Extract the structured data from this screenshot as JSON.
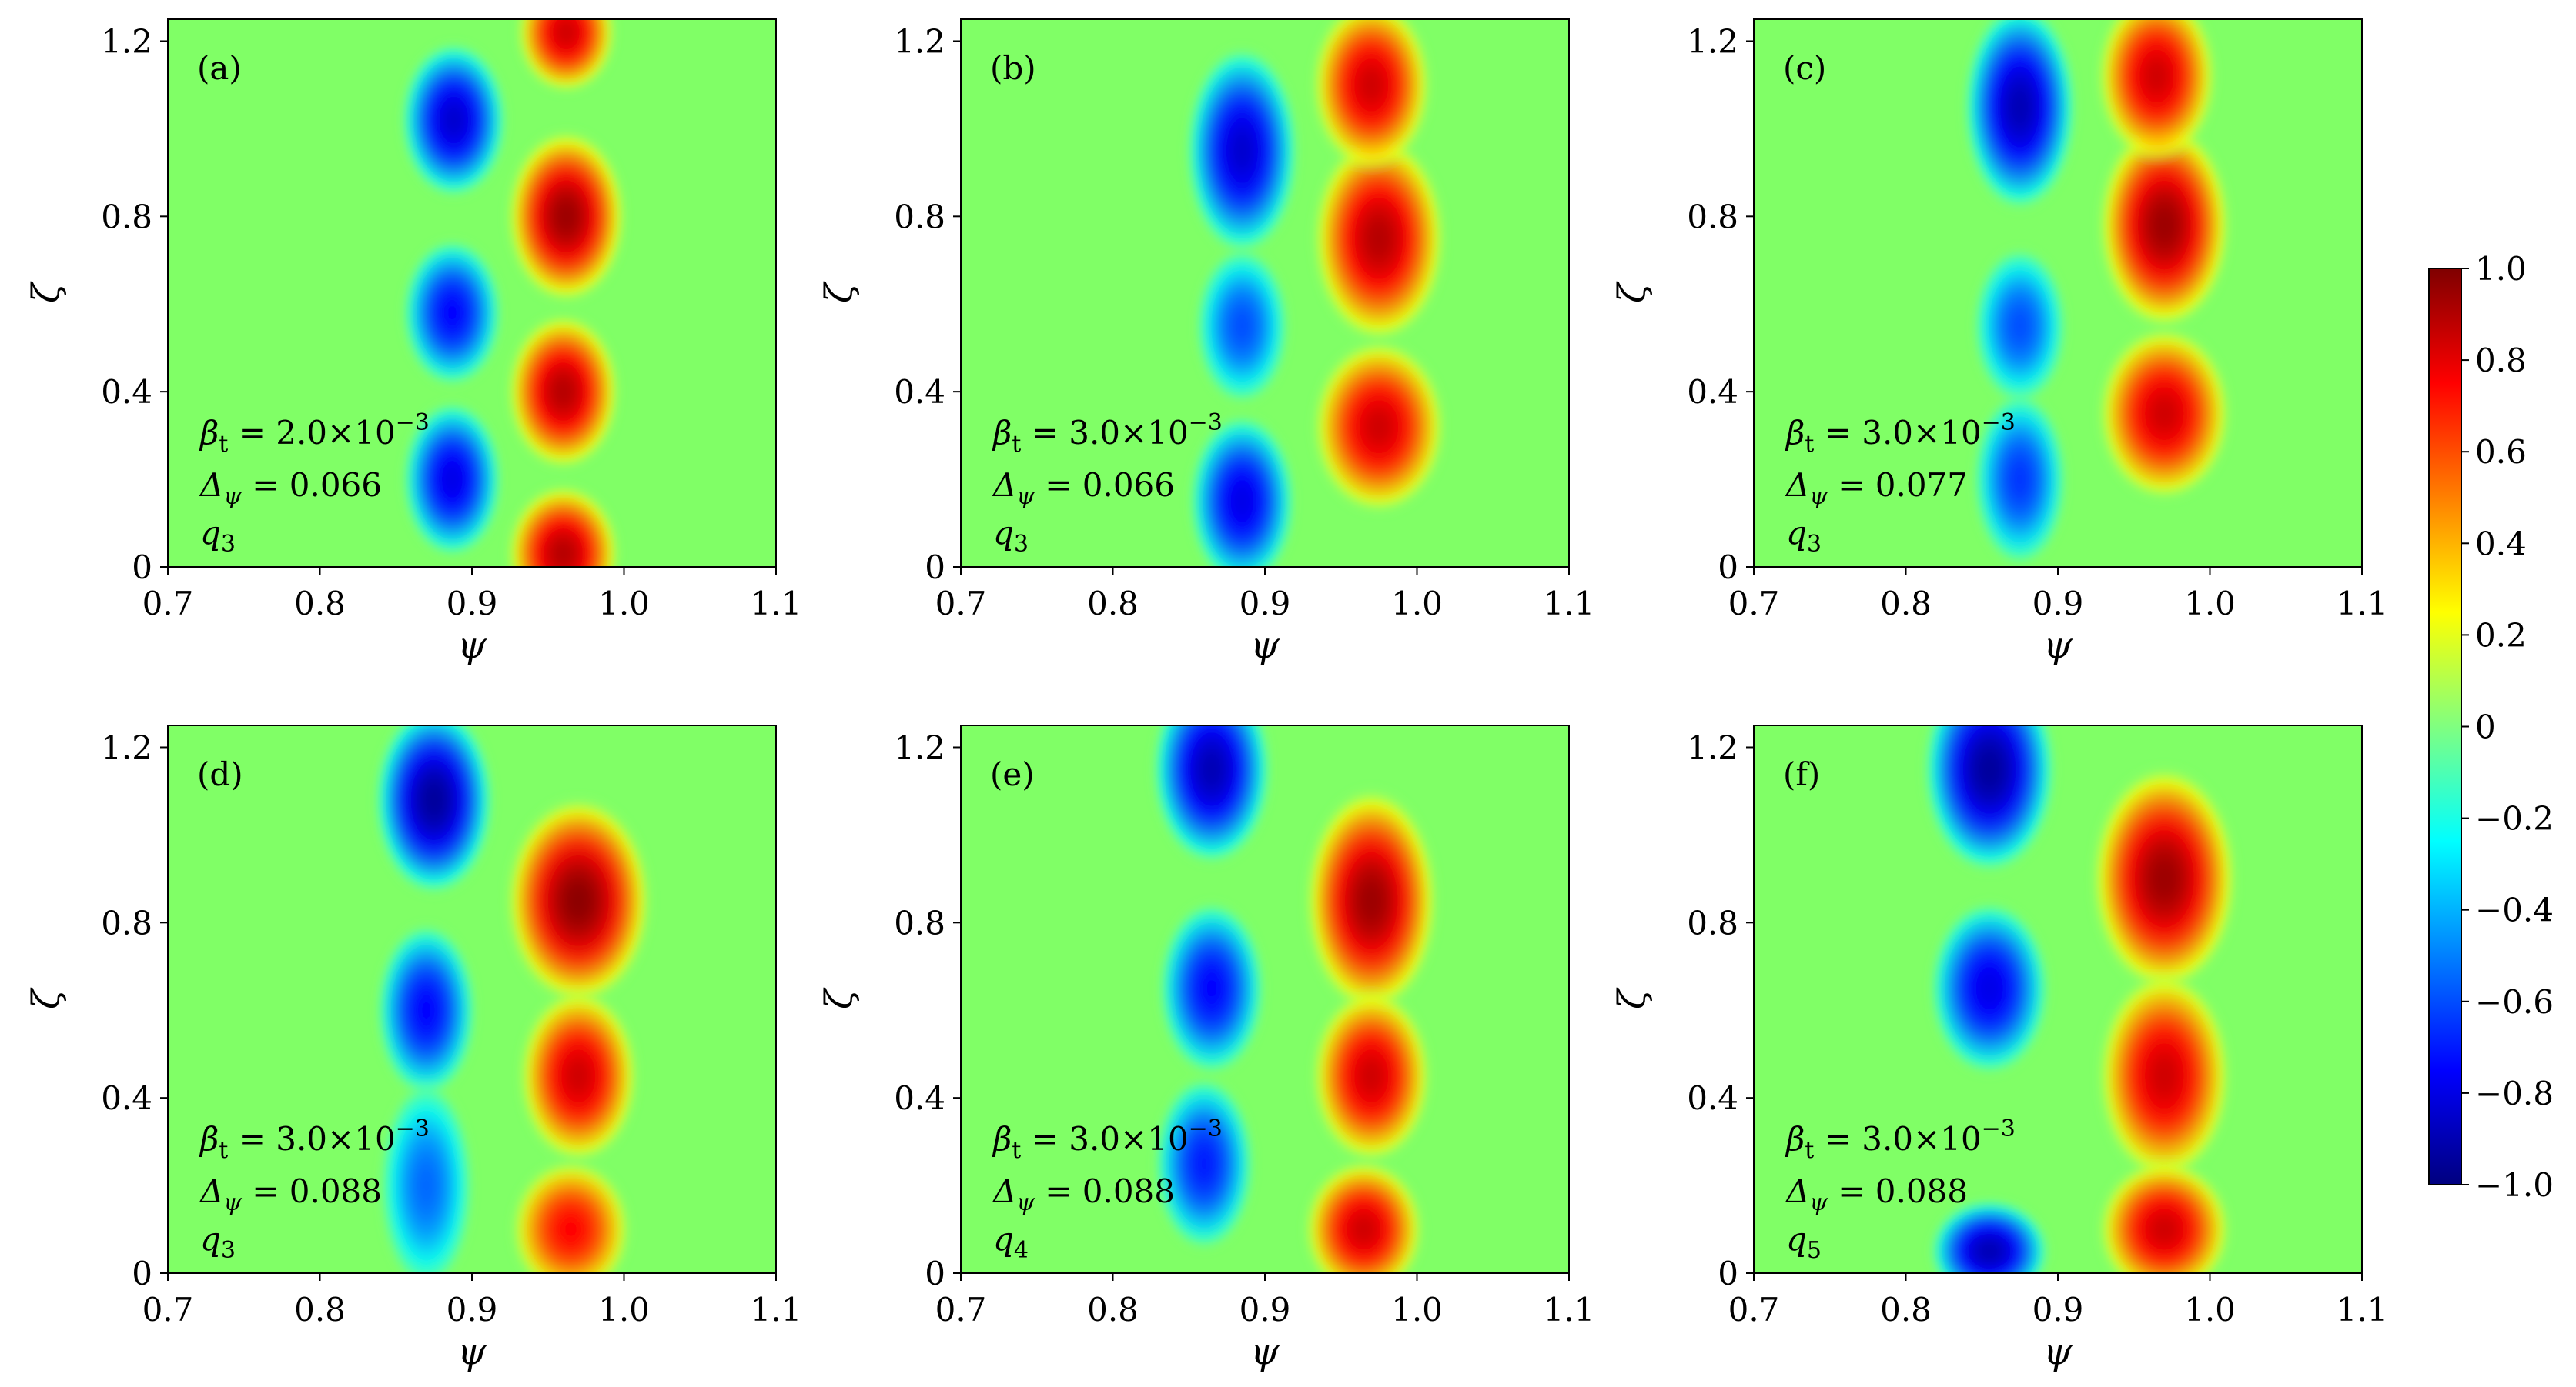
{
  "colormap": {
    "name": "jet",
    "stops": [
      "#00007f",
      "#0000ff",
      "#0080ff",
      "#00ffff",
      "#80ff80",
      "#ffff00",
      "#ff8000",
      "#ff0000",
      "#7f0000"
    ],
    "background": "#80ff66"
  },
  "chart_data": [
    {
      "type": "heatmap",
      "panel": "(a)",
      "xlabel": "ψ",
      "ylabel": "ζ",
      "xlim": [
        0.7,
        1.1
      ],
      "ylim": [
        0,
        1.25
      ],
      "xticks": [
        "0.7",
        "0.8",
        "0.9",
        "1.0",
        "1.1"
      ],
      "yticks": [
        "0",
        "0.4",
        "0.8",
        "1.2"
      ],
      "annotation": {
        "beta": "2.0",
        "exp": "−3",
        "delta": "0.066",
        "q": "q",
        "qsub": "3"
      },
      "blobs": [
        {
          "x": 0.888,
          "y": 1.02,
          "sx": 0.016,
          "sy": 0.09,
          "v": -0.85
        },
        {
          "x": 0.887,
          "y": 0.58,
          "sx": 0.015,
          "sy": 0.085,
          "v": -0.75
        },
        {
          "x": 0.887,
          "y": 0.2,
          "sx": 0.015,
          "sy": 0.09,
          "v": -0.8
        },
        {
          "x": 0.962,
          "y": 0.8,
          "sx": 0.018,
          "sy": 0.1,
          "v": 0.95
        },
        {
          "x": 0.96,
          "y": 0.4,
          "sx": 0.017,
          "sy": 0.09,
          "v": 0.9
        },
        {
          "x": 0.96,
          "y": 0.03,
          "sx": 0.017,
          "sy": 0.08,
          "v": 0.9
        },
        {
          "x": 0.962,
          "y": 1.22,
          "sx": 0.015,
          "sy": 0.07,
          "v": 0.85
        }
      ]
    },
    {
      "type": "heatmap",
      "panel": "(b)",
      "xlabel": "ψ",
      "ylabel": "ζ",
      "xlim": [
        0.7,
        1.1
      ],
      "ylim": [
        0,
        1.25
      ],
      "xticks": [
        "0.7",
        "0.8",
        "0.9",
        "1.0",
        "1.1"
      ],
      "yticks": [
        "0",
        "0.4",
        "0.8",
        "1.2"
      ],
      "annotation": {
        "beta": "3.0",
        "exp": "−3",
        "delta": "0.066",
        "q": "q",
        "qsub": "3"
      },
      "blobs": [
        {
          "x": 0.885,
          "y": 0.95,
          "sx": 0.017,
          "sy": 0.12,
          "v": -0.85
        },
        {
          "x": 0.885,
          "y": 0.55,
          "sx": 0.014,
          "sy": 0.09,
          "v": -0.6
        },
        {
          "x": 0.885,
          "y": 0.15,
          "sx": 0.016,
          "sy": 0.1,
          "v": -0.8
        },
        {
          "x": 0.975,
          "y": 0.75,
          "sx": 0.02,
          "sy": 0.12,
          "v": 0.9
        },
        {
          "x": 0.975,
          "y": 0.32,
          "sx": 0.02,
          "sy": 0.1,
          "v": 0.85
        },
        {
          "x": 0.97,
          "y": 1.1,
          "sx": 0.018,
          "sy": 0.1,
          "v": 0.85
        }
      ]
    },
    {
      "type": "heatmap",
      "panel": "(c)",
      "xlabel": "ψ",
      "ylabel": "ζ",
      "xlim": [
        0.7,
        1.1
      ],
      "ylim": [
        0,
        1.25
      ],
      "xticks": [
        "0.7",
        "0.8",
        "0.9",
        "1.0",
        "1.1"
      ],
      "yticks": [
        "0",
        "0.4",
        "0.8",
        "1.2"
      ],
      "annotation": {
        "beta": "3.0",
        "exp": "−3",
        "delta": "0.077",
        "q": "q",
        "qsub": "3"
      },
      "blobs": [
        {
          "x": 0.875,
          "y": 1.05,
          "sx": 0.017,
          "sy": 0.12,
          "v": -0.9
        },
        {
          "x": 0.875,
          "y": 0.55,
          "sx": 0.014,
          "sy": 0.09,
          "v": -0.6
        },
        {
          "x": 0.875,
          "y": 0.2,
          "sx": 0.014,
          "sy": 0.1,
          "v": -0.65
        },
        {
          "x": 0.97,
          "y": 0.78,
          "sx": 0.02,
          "sy": 0.12,
          "v": 0.95
        },
        {
          "x": 0.97,
          "y": 0.35,
          "sx": 0.02,
          "sy": 0.1,
          "v": 0.85
        },
        {
          "x": 0.965,
          "y": 1.12,
          "sx": 0.018,
          "sy": 0.1,
          "v": 0.85
        }
      ]
    },
    {
      "type": "heatmap",
      "panel": "(d)",
      "xlabel": "ψ",
      "ylabel": "ζ",
      "xlim": [
        0.7,
        1.1
      ],
      "ylim": [
        0,
        1.25
      ],
      "xticks": [
        "0.7",
        "0.8",
        "0.9",
        "1.0",
        "1.1"
      ],
      "yticks": [
        "0",
        "0.4",
        "0.8",
        "1.2"
      ],
      "annotation": {
        "beta": "3.0",
        "exp": "−3",
        "delta": "0.088",
        "q": "q",
        "qsub": "3"
      },
      "blobs": [
        {
          "x": 0.875,
          "y": 1.08,
          "sx": 0.018,
          "sy": 0.11,
          "v": -0.95
        },
        {
          "x": 0.87,
          "y": 0.6,
          "sx": 0.015,
          "sy": 0.1,
          "v": -0.75
        },
        {
          "x": 0.87,
          "y": 0.2,
          "sx": 0.014,
          "sy": 0.12,
          "v": -0.55
        },
        {
          "x": 0.97,
          "y": 0.85,
          "sx": 0.022,
          "sy": 0.12,
          "v": 0.98
        },
        {
          "x": 0.97,
          "y": 0.45,
          "sx": 0.018,
          "sy": 0.1,
          "v": 0.85
        },
        {
          "x": 0.965,
          "y": 0.1,
          "sx": 0.018,
          "sy": 0.08,
          "v": 0.75
        }
      ]
    },
    {
      "type": "heatmap",
      "panel": "(e)",
      "xlabel": "ψ",
      "ylabel": "ζ",
      "xlim": [
        0.7,
        1.1
      ],
      "ylim": [
        0,
        1.25
      ],
      "xticks": [
        "0.7",
        "0.8",
        "0.9",
        "1.0",
        "1.1"
      ],
      "yticks": [
        "0",
        "0.4",
        "0.8",
        "1.2"
      ],
      "annotation": {
        "beta": "3.0",
        "exp": "−3",
        "delta": "0.088",
        "q": "q",
        "qsub": "4"
      },
      "blobs": [
        {
          "x": 0.865,
          "y": 1.15,
          "sx": 0.018,
          "sy": 0.11,
          "v": -0.9
        },
        {
          "x": 0.865,
          "y": 0.65,
          "sx": 0.016,
          "sy": 0.1,
          "v": -0.75
        },
        {
          "x": 0.86,
          "y": 0.25,
          "sx": 0.015,
          "sy": 0.1,
          "v": -0.7
        },
        {
          "x": 0.97,
          "y": 0.85,
          "sx": 0.02,
          "sy": 0.13,
          "v": 0.95
        },
        {
          "x": 0.97,
          "y": 0.45,
          "sx": 0.018,
          "sy": 0.1,
          "v": 0.85
        },
        {
          "x": 0.965,
          "y": 0.1,
          "sx": 0.018,
          "sy": 0.08,
          "v": 0.85
        }
      ]
    },
    {
      "type": "heatmap",
      "panel": "(f)",
      "xlabel": "ψ",
      "ylabel": "ζ",
      "xlim": [
        0.7,
        1.1
      ],
      "ylim": [
        0,
        1.25
      ],
      "xticks": [
        "0.7",
        "0.8",
        "0.9",
        "1.0",
        "1.1"
      ],
      "yticks": [
        "0",
        "0.4",
        "0.8",
        "1.2"
      ],
      "annotation": {
        "beta": "3.0",
        "exp": "−3",
        "delta": "0.088",
        "q": "q",
        "qsub": "5"
      },
      "blobs": [
        {
          "x": 0.855,
          "y": 1.15,
          "sx": 0.02,
          "sy": 0.12,
          "v": -0.95
        },
        {
          "x": 0.855,
          "y": 0.65,
          "sx": 0.018,
          "sy": 0.1,
          "v": -0.8
        },
        {
          "x": 0.855,
          "y": 0.05,
          "sx": 0.018,
          "sy": 0.06,
          "v": -0.9
        },
        {
          "x": 0.97,
          "y": 0.9,
          "sx": 0.022,
          "sy": 0.13,
          "v": 0.95
        },
        {
          "x": 0.97,
          "y": 0.45,
          "sx": 0.02,
          "sy": 0.12,
          "v": 0.85
        },
        {
          "x": 0.97,
          "y": 0.1,
          "sx": 0.02,
          "sy": 0.08,
          "v": 0.85
        }
      ]
    }
  ],
  "colorbar": {
    "range": [
      -1.0,
      1.0
    ],
    "ticks": [
      "1.0",
      "0.8",
      "0.6",
      "0.4",
      "0.2",
      "0",
      "−0.2",
      "−0.4",
      "−0.6",
      "−0.8",
      "−1.0"
    ]
  },
  "symbols": {
    "beta_lhs": "β",
    "beta_sub": "t",
    "times": "×10",
    "delta_lhs": "Δ",
    "delta_sub": "ψ",
    "equals": " = "
  }
}
